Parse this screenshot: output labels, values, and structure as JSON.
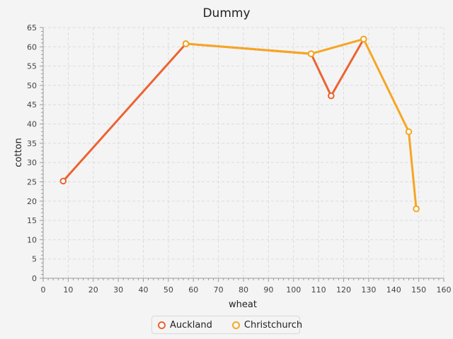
{
  "chart_data": {
    "type": "line",
    "title": "Dummy",
    "xlabel": "wheat",
    "ylabel": "cotton",
    "xlim": [
      0,
      160
    ],
    "ylim": [
      0,
      65
    ],
    "x_ticks": [
      0,
      10,
      20,
      30,
      40,
      50,
      60,
      70,
      80,
      90,
      100,
      110,
      120,
      130,
      140,
      150,
      160
    ],
    "y_ticks": [
      0,
      5,
      10,
      15,
      20,
      25,
      30,
      35,
      40,
      45,
      50,
      55,
      60,
      65
    ],
    "grid": true,
    "legend_position": "bottom",
    "series": [
      {
        "name": "Auckland",
        "color": "#ec6331",
        "points": [
          [
            8,
            25.2
          ],
          [
            57,
            60.8
          ],
          [
            107,
            58.2
          ],
          [
            115,
            47.3
          ],
          [
            128,
            62
          ]
        ]
      },
      {
        "name": "Christchurch",
        "color": "#f5a623",
        "points": [
          [
            57,
            60.8
          ],
          [
            107,
            58.2
          ],
          [
            128,
            62
          ],
          [
            146,
            38
          ],
          [
            149,
            18
          ]
        ]
      }
    ]
  }
}
